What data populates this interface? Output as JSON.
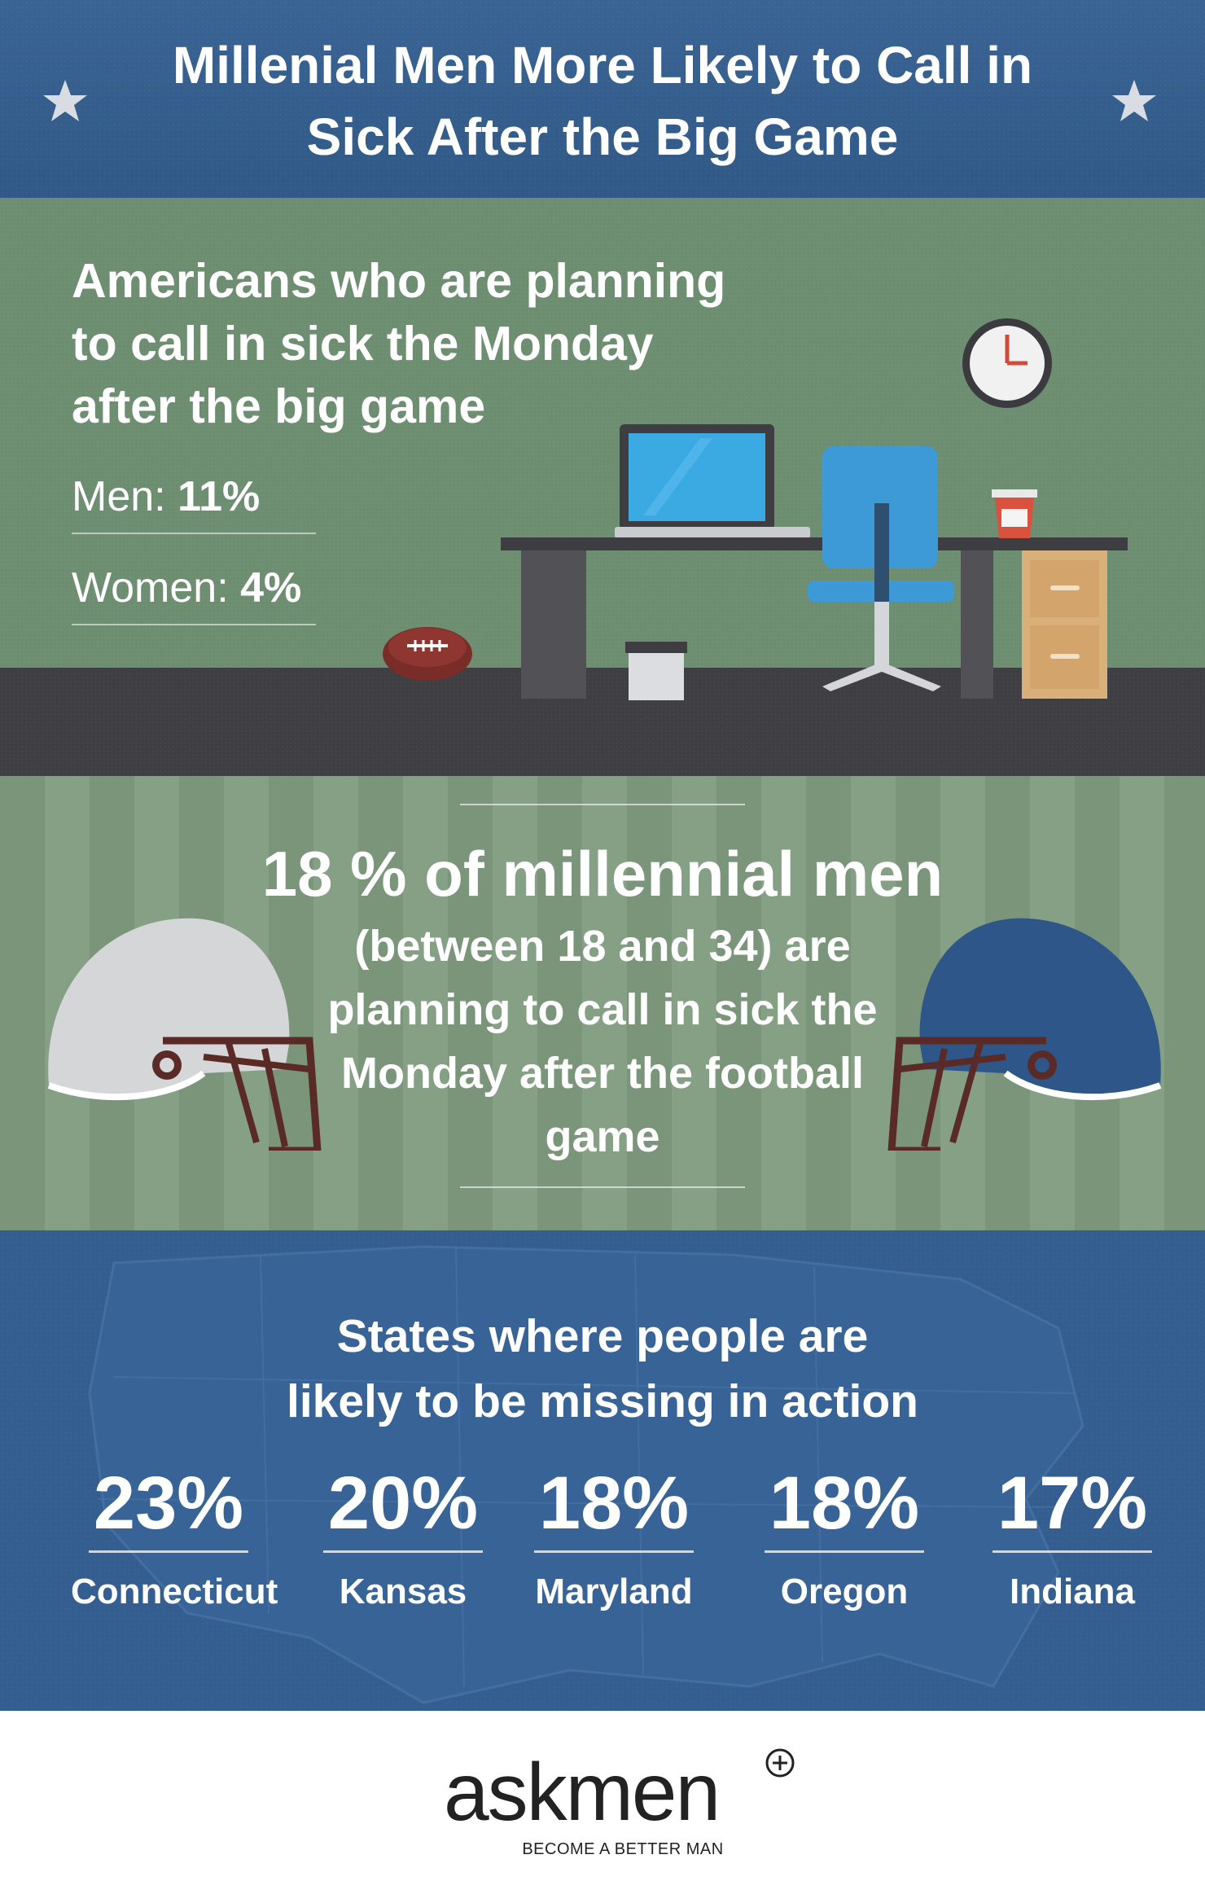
{
  "header": {
    "title": "Millenial Men More Likely to Call in Sick After the Big Game"
  },
  "office": {
    "headline": "Americans who are planning to call in sick the Monday after the big game",
    "stats": [
      {
        "label": "Men:",
        "value": "11%"
      },
      {
        "label": "Women:",
        "value": "4%"
      }
    ]
  },
  "millennial": {
    "headline": "18 % of millennial men",
    "subtext": "(between 18 and 34) are planning to call in sick the Monday after the football game"
  },
  "states": {
    "heading": "States where people are likely to be missing in action",
    "items": [
      {
        "percent": "23%",
        "state": "Connecticut"
      },
      {
        "percent": "20%",
        "state": "Kansas"
      },
      {
        "percent": "18%",
        "state": "Maryland"
      },
      {
        "percent": "18%",
        "state": "Oregon"
      },
      {
        "percent": "17%",
        "state": "Indiana"
      }
    ]
  },
  "footer": {
    "logo": "askmen",
    "tagline": "BECOME A BETTER MAN"
  },
  "colors": {
    "header_blue": "#345d8f",
    "office_green": "#6f8f72",
    "floor_dark": "#3f3f43",
    "states_blue": "#345e90"
  }
}
